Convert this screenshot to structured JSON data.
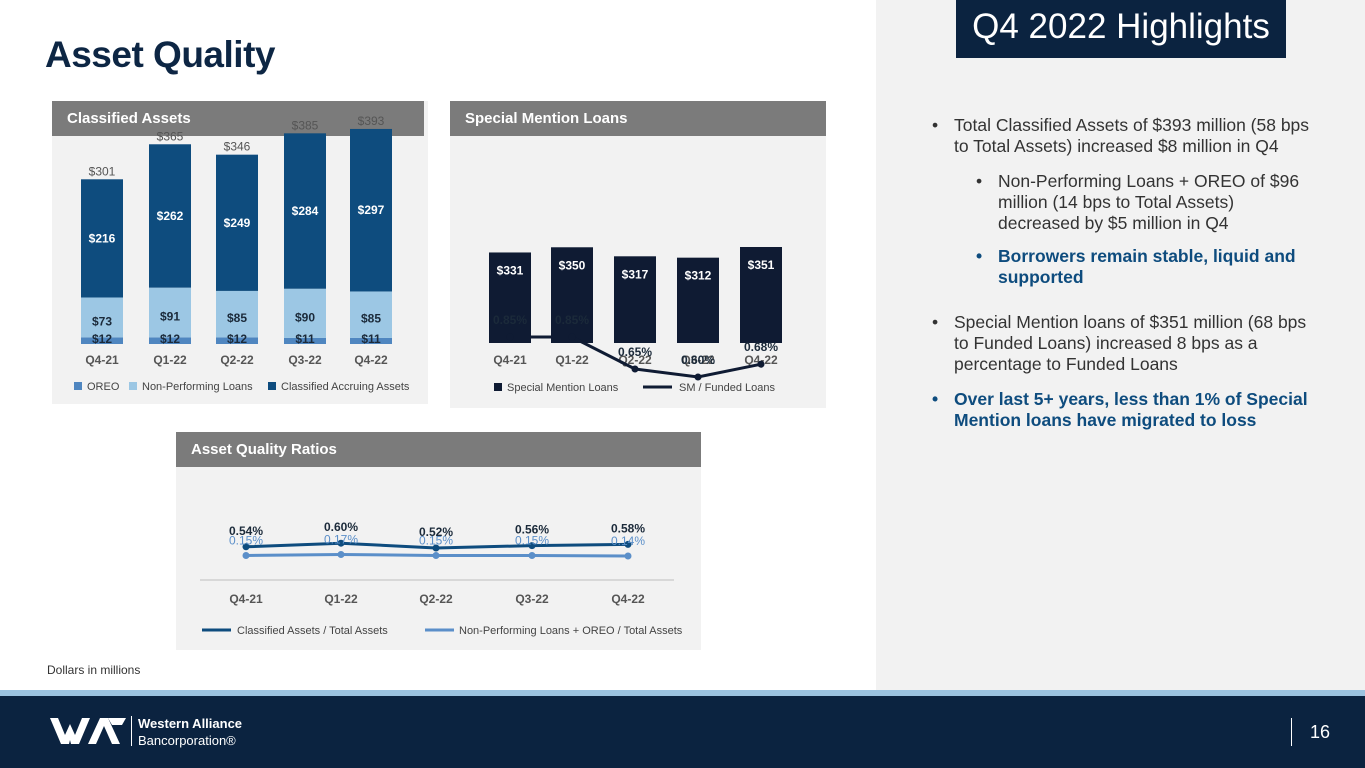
{
  "title": "Asset Quality",
  "footnote": "Dollars in millions",
  "highlights": {
    "title": "Q4 2022 Highlights",
    "bullets": [
      {
        "text": "Total Classified Assets of $393 million (58 bps to Total Assets) increased $8 million in Q4",
        "level": 1,
        "emphasis": false
      },
      {
        "text": "Non-Performing Loans + OREO of $96 million (14 bps to Total Assets) decreased by $5 million in Q4",
        "level": 2,
        "emphasis": false
      },
      {
        "text": "Borrowers remain stable, liquid and supported",
        "level": 2,
        "emphasis": true
      },
      {
        "text": "Special Mention loans of $351 million (68 bps to Funded Loans) increased 8 bps as a percentage to Funded Loans",
        "level": 1,
        "emphasis": false
      },
      {
        "text": "Over last 5+ years, less than 1% of Special Mention loans have migrated to loss",
        "level": 1,
        "emphasis": true
      }
    ],
    "bullet_glyph": "•"
  },
  "footer": {
    "brand_line1": "Western Alliance",
    "brand_line2": "Bancorporation®",
    "page_number": "16"
  },
  "colors": {
    "navy": "#0e4c7e",
    "light_blue": "#9cc7e4",
    "oreo_blue": "#4f86c0",
    "dark_navy": "#0f1b33",
    "line_light": "#5b8fc9",
    "header_gray": "#7b7b7b"
  },
  "chart_data": [
    {
      "type": "bar",
      "stacked": true,
      "title": "Classified Assets",
      "categories": [
        "Q4-21",
        "Q1-22",
        "Q2-22",
        "Q3-22",
        "Q4-22"
      ],
      "series": [
        {
          "name": "OREO",
          "values": [
            12,
            12,
            12,
            11,
            11
          ],
          "labels": [
            "$12",
            "$12",
            "$12",
            "$11",
            "$11"
          ],
          "color": "#4f86c0"
        },
        {
          "name": "Non-Performing Loans",
          "values": [
            73,
            91,
            85,
            90,
            85
          ],
          "labels": [
            "$73",
            "$91",
            "$85",
            "$90",
            "$85"
          ],
          "color": "#9cc7e4"
        },
        {
          "name": "Classified Accruing Assets",
          "values": [
            216,
            262,
            249,
            284,
            297
          ],
          "labels": [
            "$216",
            "$262",
            "$249",
            "$284",
            "$297"
          ],
          "color": "#0e4c7e"
        }
      ],
      "totals": [
        "$301",
        "$365",
        "$346",
        "$385",
        "$393"
      ],
      "legend_position": "bottom",
      "grid": false
    },
    {
      "type": "bar",
      "title": "Special Mention Loans",
      "categories": [
        "Q4-21",
        "Q1-22",
        "Q2-22",
        "Q3-22",
        "Q4-22"
      ],
      "series": [
        {
          "name": "Special Mention Loans",
          "type": "bar",
          "values": [
            331,
            350,
            317,
            312,
            351
          ],
          "labels": [
            "$331",
            "$350",
            "$317",
            "$312",
            "$351"
          ],
          "color": "#0f1b33"
        },
        {
          "name": "SM / Funded Loans",
          "type": "line",
          "values": [
            0.85,
            0.85,
            0.65,
            0.6,
            0.68
          ],
          "labels": [
            "0.85%",
            "0.85%",
            "0.65%",
            "0.60%",
            "0.68%"
          ],
          "color": "#0f1b33"
        }
      ],
      "legend_position": "bottom",
      "grid": false
    },
    {
      "type": "line",
      "title": "Asset Quality Ratios",
      "categories": [
        "Q4-21",
        "Q1-22",
        "Q2-22",
        "Q3-22",
        "Q4-22"
      ],
      "series": [
        {
          "name": "Classified Assets / Total Assets",
          "values": [
            0.54,
            0.6,
            0.52,
            0.56,
            0.58
          ],
          "labels": [
            "0.54%",
            "0.60%",
            "0.52%",
            "0.56%",
            "0.58%"
          ],
          "color": "#0e4c7e"
        },
        {
          "name": "Non-Performing Loans + OREO / Total Assets",
          "values": [
            0.15,
            0.17,
            0.15,
            0.15,
            0.14
          ],
          "labels": [
            "0.15%",
            "0.17%",
            "0.15%",
            "0.15%",
            "0.14%"
          ],
          "color": "#5b8fc9"
        }
      ],
      "legend_position": "bottom",
      "grid": false
    }
  ]
}
